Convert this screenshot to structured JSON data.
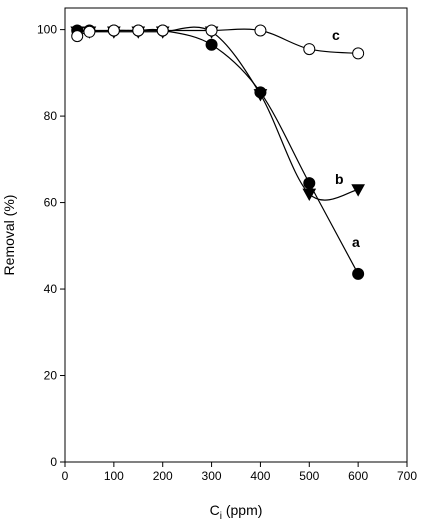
{
  "chart_data": {
    "type": "scatter",
    "xlabel_main": "C",
    "xlabel_sub": "i",
    "xlabel_unit": " (ppm)",
    "ylabel": "Removal (%)",
    "xlim": [
      0,
      700
    ],
    "ylim": [
      0,
      105
    ],
    "xticks": [
      0,
      100,
      200,
      300,
      400,
      500,
      600,
      700
    ],
    "yticks": [
      0,
      20,
      40,
      60,
      80,
      100
    ],
    "grid": false,
    "series": [
      {
        "name": "a",
        "marker": "filled-circle",
        "color": "#000000",
        "x": [
          25,
          50,
          100,
          150,
          200,
          300,
          400,
          500,
          600
        ],
        "y": [
          99.8,
          99.8,
          99.8,
          99.8,
          99.8,
          96.5,
          85.5,
          64.5,
          43.5
        ]
      },
      {
        "name": "b",
        "marker": "filled-triangle-down",
        "color": "#000000",
        "x": [
          25,
          50,
          100,
          150,
          200,
          300,
          400,
          500,
          600
        ],
        "y": [
          99.5,
          99.5,
          99.5,
          99.5,
          99.5,
          99.5,
          85.0,
          62.0,
          63.0
        ]
      },
      {
        "name": "c",
        "marker": "open-circle",
        "color": "#000000",
        "x": [
          25,
          50,
          100,
          150,
          200,
          300,
          400,
          500,
          600
        ],
        "y": [
          98.5,
          99.5,
          99.8,
          99.8,
          99.8,
          99.8,
          99.8,
          95.5,
          94.5
        ]
      }
    ]
  }
}
